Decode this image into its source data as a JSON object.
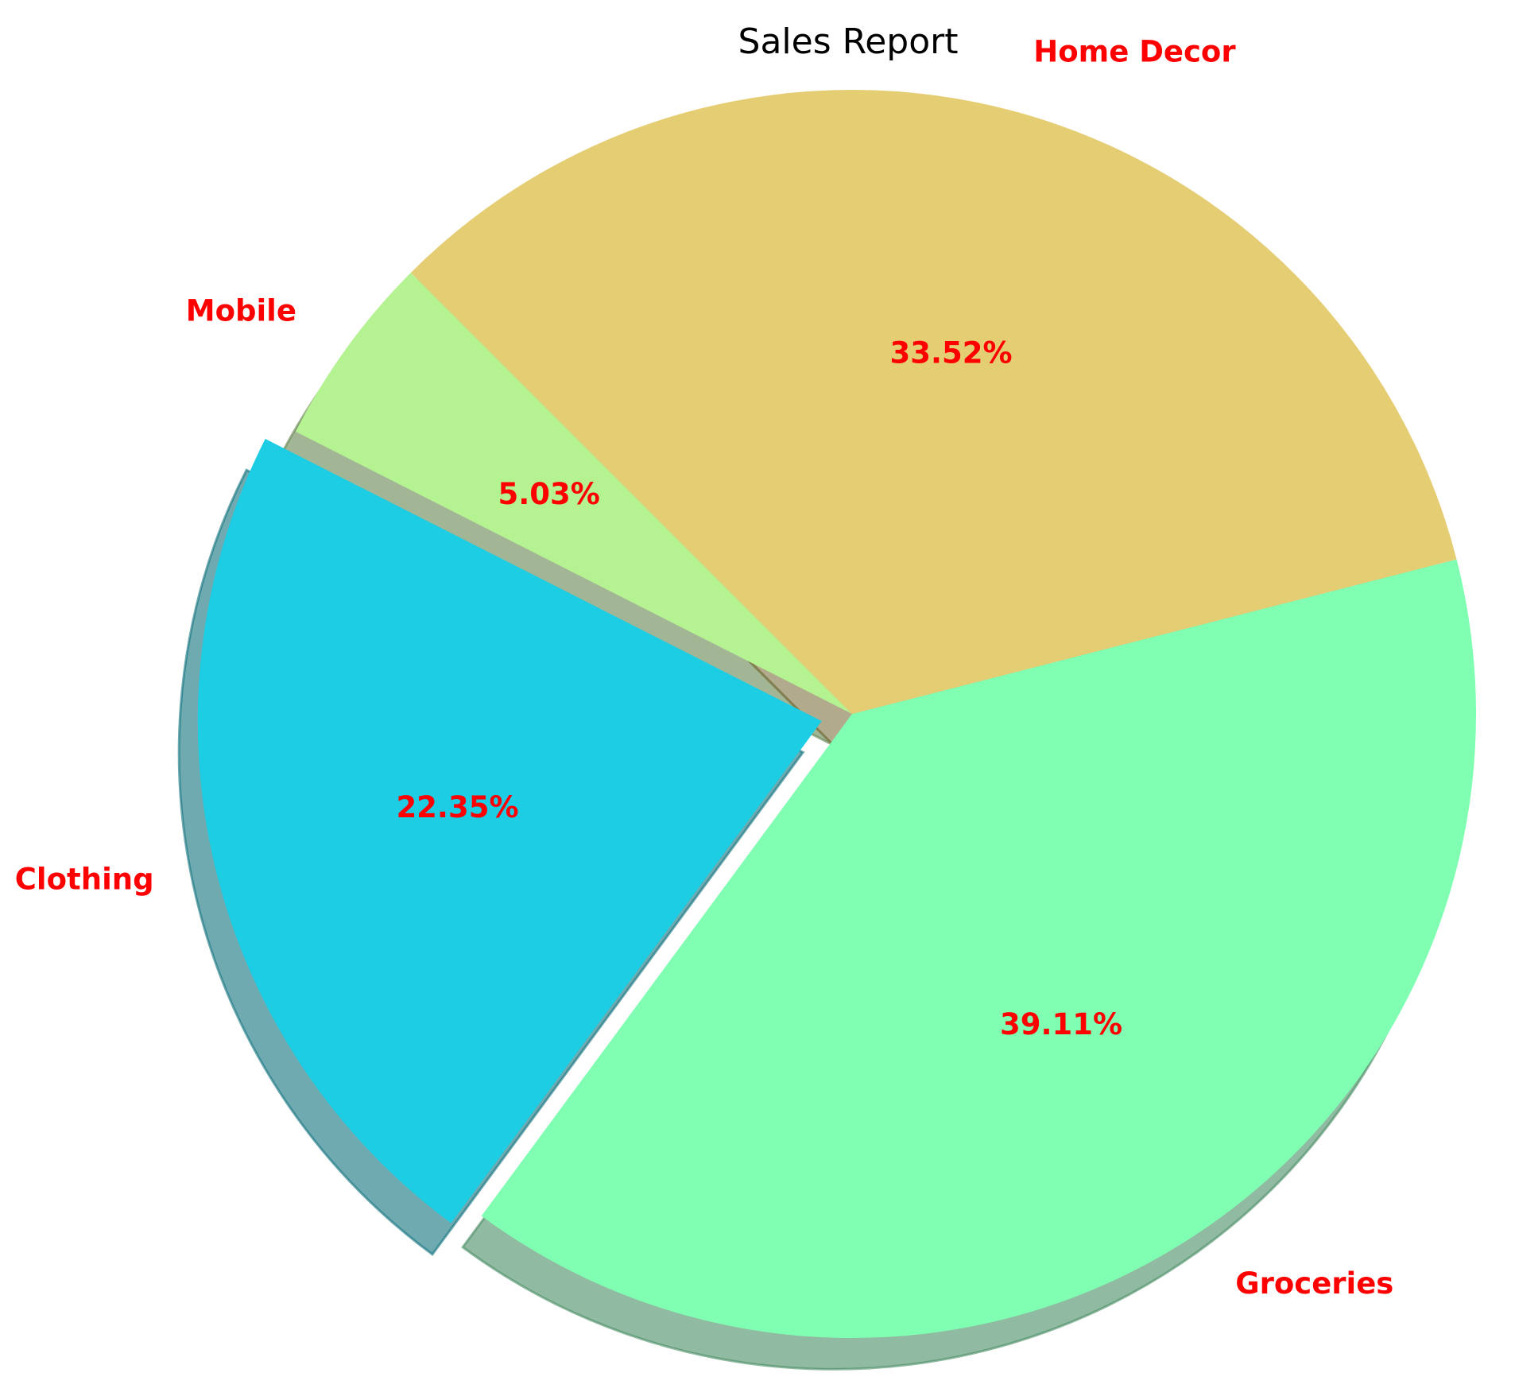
{
  "chart_data": {
    "type": "pie",
    "title": "Sales Report",
    "slices": [
      {
        "label": "Mobile",
        "value": 5.03,
        "pct_label": "5.03%",
        "color": "#b5f291",
        "exploded": false
      },
      {
        "label": "Clothing",
        "value": 22.35,
        "pct_label": "22.35%",
        "color": "#1ccde3",
        "exploded": true
      },
      {
        "label": "Groceries",
        "value": 39.11,
        "pct_label": "39.11%",
        "color": "#80ffb2",
        "exploded": false
      },
      {
        "label": "Home Decor",
        "value": 33.52,
        "pct_label": "33.52%",
        "color": "#e5cd73",
        "exploded": false
      }
    ],
    "start_angle_deg": 135,
    "shadow": true,
    "label_color": "#ff0000",
    "legend": "none"
  }
}
